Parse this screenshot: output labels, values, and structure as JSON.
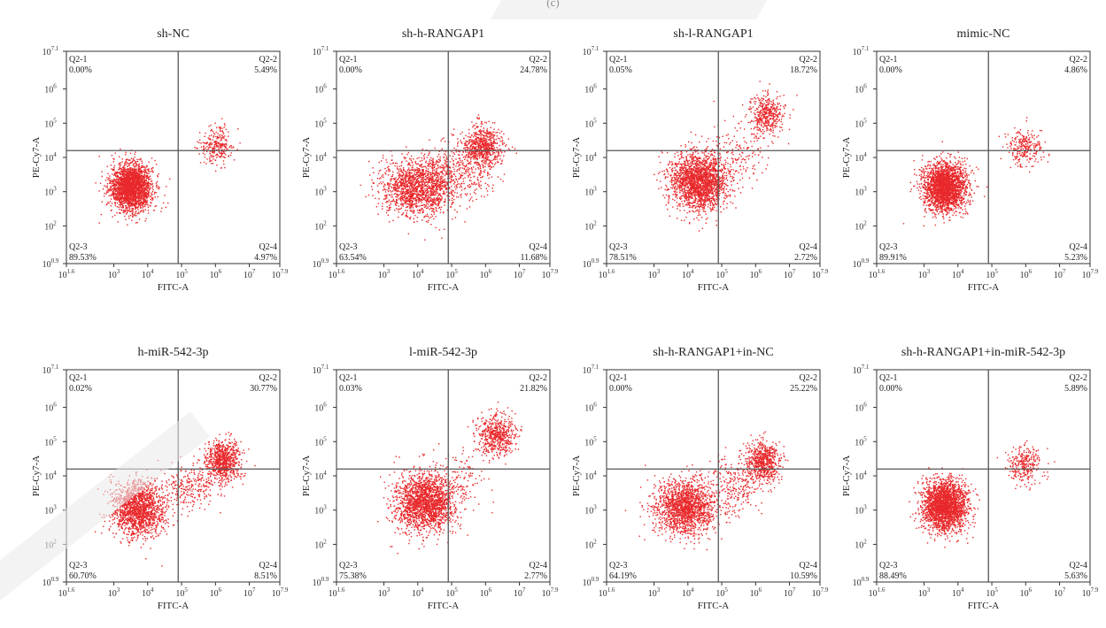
{
  "figure_label": "(c)",
  "axis": {
    "xlabel": "FITC-A",
    "ylabel": "PE-Cy7-A",
    "x_ticks": [
      "10^1.6",
      "10^3",
      "10^4",
      "10^5",
      "10^6",
      "10^7",
      "10^7.9"
    ],
    "y_ticks": [
      "10^0.9",
      "10^2",
      "10^3",
      "10^4",
      "10^5",
      "10^6",
      "10^7.1"
    ]
  },
  "colors": {
    "points": "#e8282b",
    "gate": "#555555",
    "axis": "#333333"
  },
  "chart_data": [
    {
      "type": "scatter",
      "title": "sh-NC",
      "xlabel": "FITC-A",
      "ylabel": "PE-Cy7-A",
      "xscale": "log",
      "yscale": "log",
      "xlim": [
        1.6,
        7.9
      ],
      "ylim": [
        0.9,
        7.1
      ],
      "gate": {
        "x": 4.9,
        "y": 4.2
      },
      "quadrants": [
        {
          "name": "Q2-1",
          "value": "0.00%"
        },
        {
          "name": "Q2-2",
          "value": "5.49%"
        },
        {
          "name": "Q2-3",
          "value": "89.53%"
        },
        {
          "name": "Q2-4",
          "value": "4.97%"
        }
      ]
    },
    {
      "type": "scatter",
      "title": "sh-h-RANGAP1",
      "xlabel": "FITC-A",
      "ylabel": "PE-Cy7-A",
      "xscale": "log",
      "yscale": "log",
      "xlim": [
        1.6,
        7.9
      ],
      "ylim": [
        0.9,
        7.1
      ],
      "gate": {
        "x": 4.9,
        "y": 4.2
      },
      "quadrants": [
        {
          "name": "Q2-1",
          "value": "0.00%"
        },
        {
          "name": "Q2-2",
          "value": "24.78%"
        },
        {
          "name": "Q2-3",
          "value": "63.54%"
        },
        {
          "name": "Q2-4",
          "value": "11.68%"
        }
      ]
    },
    {
      "type": "scatter",
      "title": "sh-l-RANGAP1",
      "xlabel": "FITC-A",
      "ylabel": "PE-Cy7-A",
      "xscale": "log",
      "yscale": "log",
      "xlim": [
        1.6,
        7.9
      ],
      "ylim": [
        0.9,
        7.1
      ],
      "gate": {
        "x": 4.9,
        "y": 4.2
      },
      "quadrants": [
        {
          "name": "Q2-1",
          "value": "0.05%"
        },
        {
          "name": "Q2-2",
          "value": "18.72%"
        },
        {
          "name": "Q2-3",
          "value": "78.51%"
        },
        {
          "name": "Q2-4",
          "value": "2.72%"
        }
      ]
    },
    {
      "type": "scatter",
      "title": "mimic-NC",
      "xlabel": "FITC-A",
      "ylabel": "PE-Cy7-A",
      "xscale": "log",
      "yscale": "log",
      "xlim": [
        1.6,
        7.9
      ],
      "ylim": [
        0.9,
        7.1
      ],
      "gate": {
        "x": 4.9,
        "y": 4.2
      },
      "quadrants": [
        {
          "name": "Q2-1",
          "value": "0.00%"
        },
        {
          "name": "Q2-2",
          "value": "4.86%"
        },
        {
          "name": "Q2-3",
          "value": "89.91%"
        },
        {
          "name": "Q2-4",
          "value": "5.23%"
        }
      ]
    },
    {
      "type": "scatter",
      "title": "h-miR-542-3p",
      "xlabel": "FITC-A",
      "ylabel": "PE-Cy7-A",
      "xscale": "log",
      "yscale": "log",
      "xlim": [
        1.6,
        7.9
      ],
      "ylim": [
        0.9,
        7.1
      ],
      "gate": {
        "x": 4.9,
        "y": 4.2
      },
      "quadrants": [
        {
          "name": "Q2-1",
          "value": "0.02%"
        },
        {
          "name": "Q2-2",
          "value": "30.77%"
        },
        {
          "name": "Q2-3",
          "value": "60.70%"
        },
        {
          "name": "Q2-4",
          "value": "8.51%"
        }
      ]
    },
    {
      "type": "scatter",
      "title": "l-miR-542-3p",
      "xlabel": "FITC-A",
      "ylabel": "PE-Cy7-A",
      "xscale": "log",
      "yscale": "log",
      "xlim": [
        1.6,
        7.9
      ],
      "ylim": [
        0.9,
        7.1
      ],
      "gate": {
        "x": 4.9,
        "y": 4.2
      },
      "quadrants": [
        {
          "name": "Q2-1",
          "value": "0.03%"
        },
        {
          "name": "Q2-2",
          "value": "21.82%"
        },
        {
          "name": "Q2-3",
          "value": "75.38%"
        },
        {
          "name": "Q2-4",
          "value": "2.77%"
        }
      ]
    },
    {
      "type": "scatter",
      "title": "sh-h-RANGAP1+in-NC",
      "xlabel": "FITC-A",
      "ylabel": "PE-Cy7-A",
      "xscale": "log",
      "yscale": "log",
      "xlim": [
        1.6,
        7.9
      ],
      "ylim": [
        0.9,
        7.1
      ],
      "gate": {
        "x": 4.9,
        "y": 4.2
      },
      "quadrants": [
        {
          "name": "Q2-1",
          "value": "0.00%"
        },
        {
          "name": "Q2-2",
          "value": "25.22%"
        },
        {
          "name": "Q2-3",
          "value": "64.19%"
        },
        {
          "name": "Q2-4",
          "value": "10.59%"
        }
      ]
    },
    {
      "type": "scatter",
      "title": "sh-h-RANGAP1+in-miR-542-3p",
      "xlabel": "FITC-A",
      "ylabel": "PE-Cy7-A",
      "xscale": "log",
      "yscale": "log",
      "xlim": [
        1.6,
        7.9
      ],
      "ylim": [
        0.9,
        7.1
      ],
      "gate": {
        "x": 4.9,
        "y": 4.2
      },
      "quadrants": [
        {
          "name": "Q2-1",
          "value": "0.00%"
        },
        {
          "name": "Q2-2",
          "value": "5.89%"
        },
        {
          "name": "Q2-3",
          "value": "88.49%"
        },
        {
          "name": "Q2-4",
          "value": "5.63%"
        }
      ]
    }
  ]
}
